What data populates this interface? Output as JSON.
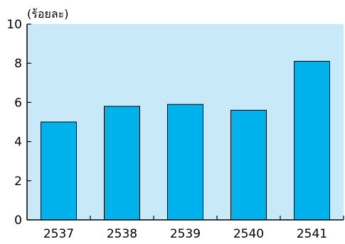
{
  "colors": {
    "plot_background": "#c8e9f8",
    "bar_fill": "#00b2ec",
    "bar_stroke": "#000000",
    "axis": "#000000"
  },
  "chart_data": {
    "type": "bar",
    "title": "",
    "xlabel": "",
    "ylabel": "(ร้อยละ)",
    "categories": [
      "2537",
      "2538",
      "2539",
      "2540",
      "2541"
    ],
    "values": [
      5.0,
      5.8,
      5.9,
      5.6,
      8.1
    ],
    "ylim": [
      0,
      10
    ],
    "yticks": [
      "0",
      "2",
      "4",
      "6",
      "8",
      "10"
    ],
    "grid": false,
    "legend": "none"
  }
}
